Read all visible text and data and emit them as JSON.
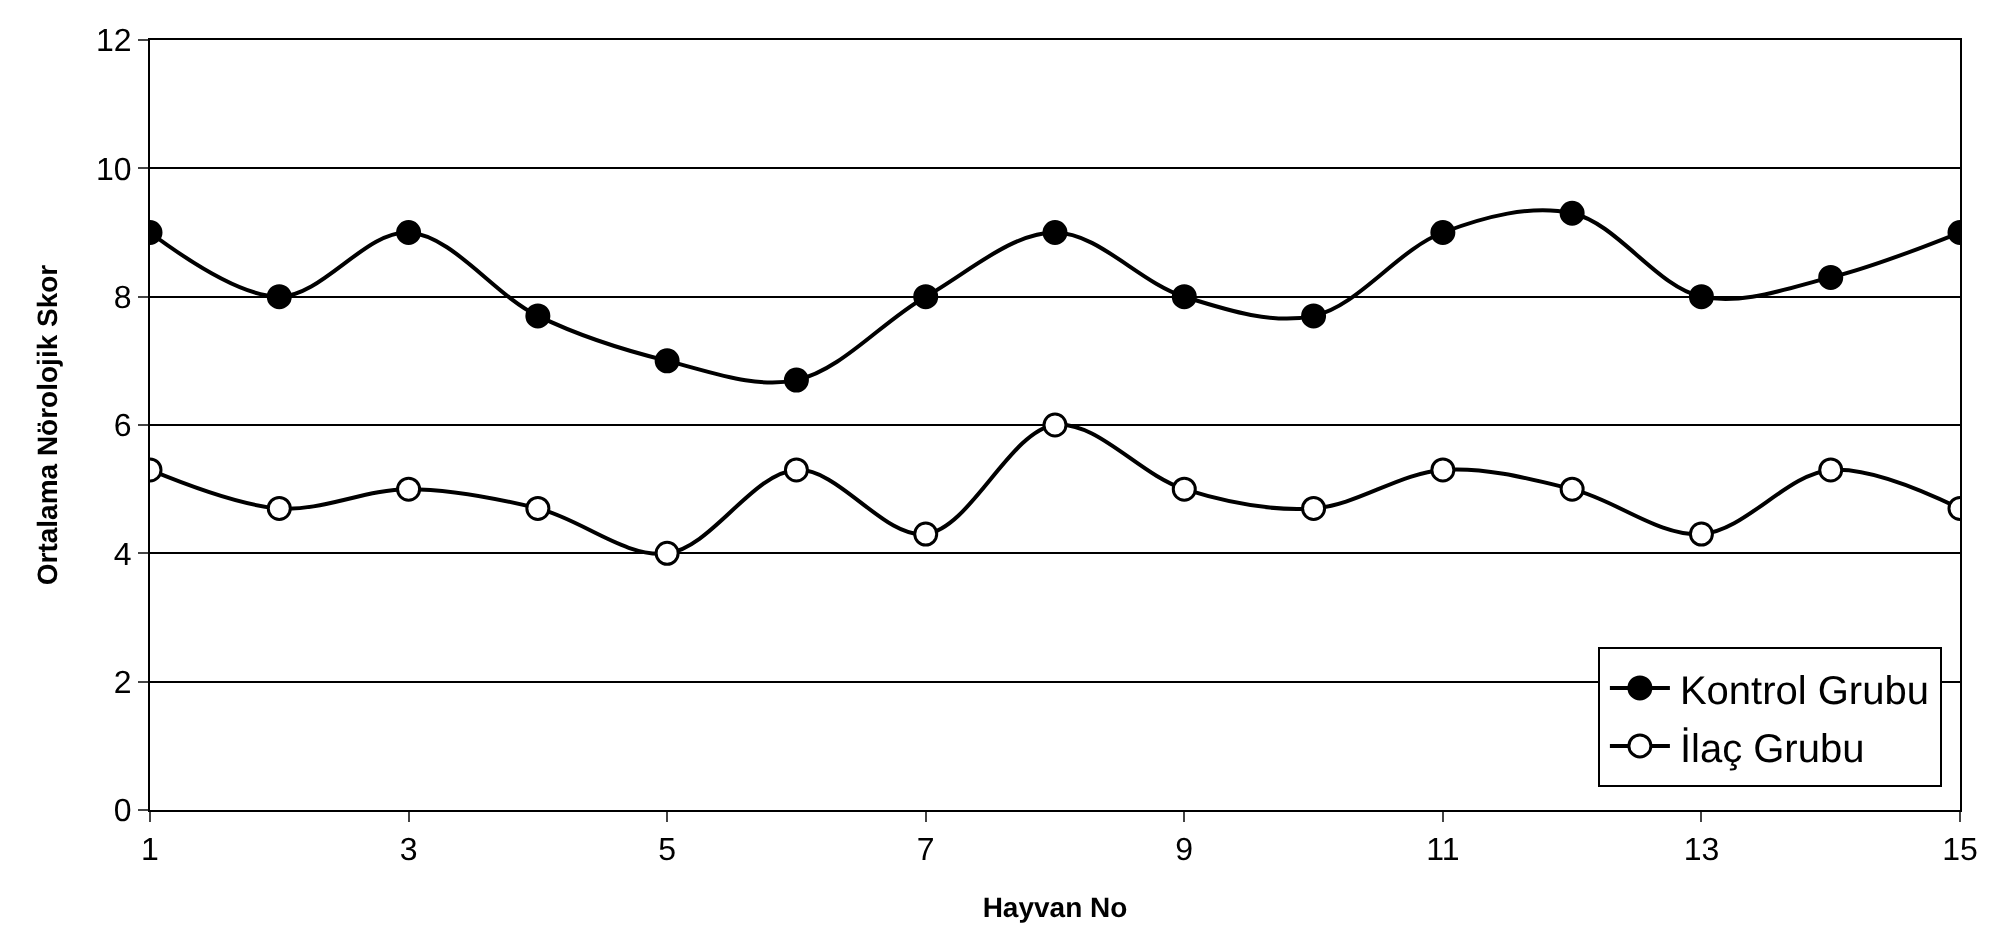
{
  "chart_data": {
    "type": "line",
    "xlabel": "Hayvan No",
    "ylabel": "Ortalama Nörolojik Skor",
    "x": [
      1,
      2,
      3,
      4,
      5,
      6,
      7,
      8,
      9,
      10,
      11,
      12,
      13,
      14,
      15
    ],
    "series": [
      {
        "name": "Kontrol Grubu",
        "color": "#000000",
        "marker": "circle",
        "values": [
          9,
          8,
          9,
          7.7,
          7,
          6.7,
          8,
          9,
          8,
          7.7,
          9,
          9.3,
          8,
          8.3,
          9
        ]
      },
      {
        "name": "İlaç Grubu",
        "color": "#000000",
        "marker": "circle-open",
        "values": [
          5.3,
          4.7,
          5,
          4.7,
          4,
          5.3,
          4.3,
          6,
          5,
          4.7,
          5.3,
          5,
          4.3,
          5.3,
          4.7
        ]
      }
    ],
    "xlim": [
      1,
      15
    ],
    "xticks": [
      1,
      3,
      5,
      7,
      9,
      11,
      13,
      15
    ],
    "ylim": [
      0,
      12
    ],
    "yticks": [
      0,
      2,
      4,
      6,
      8,
      10,
      12
    ],
    "grid": "y",
    "legend": "bottom right",
    "line_style": "solid"
  }
}
